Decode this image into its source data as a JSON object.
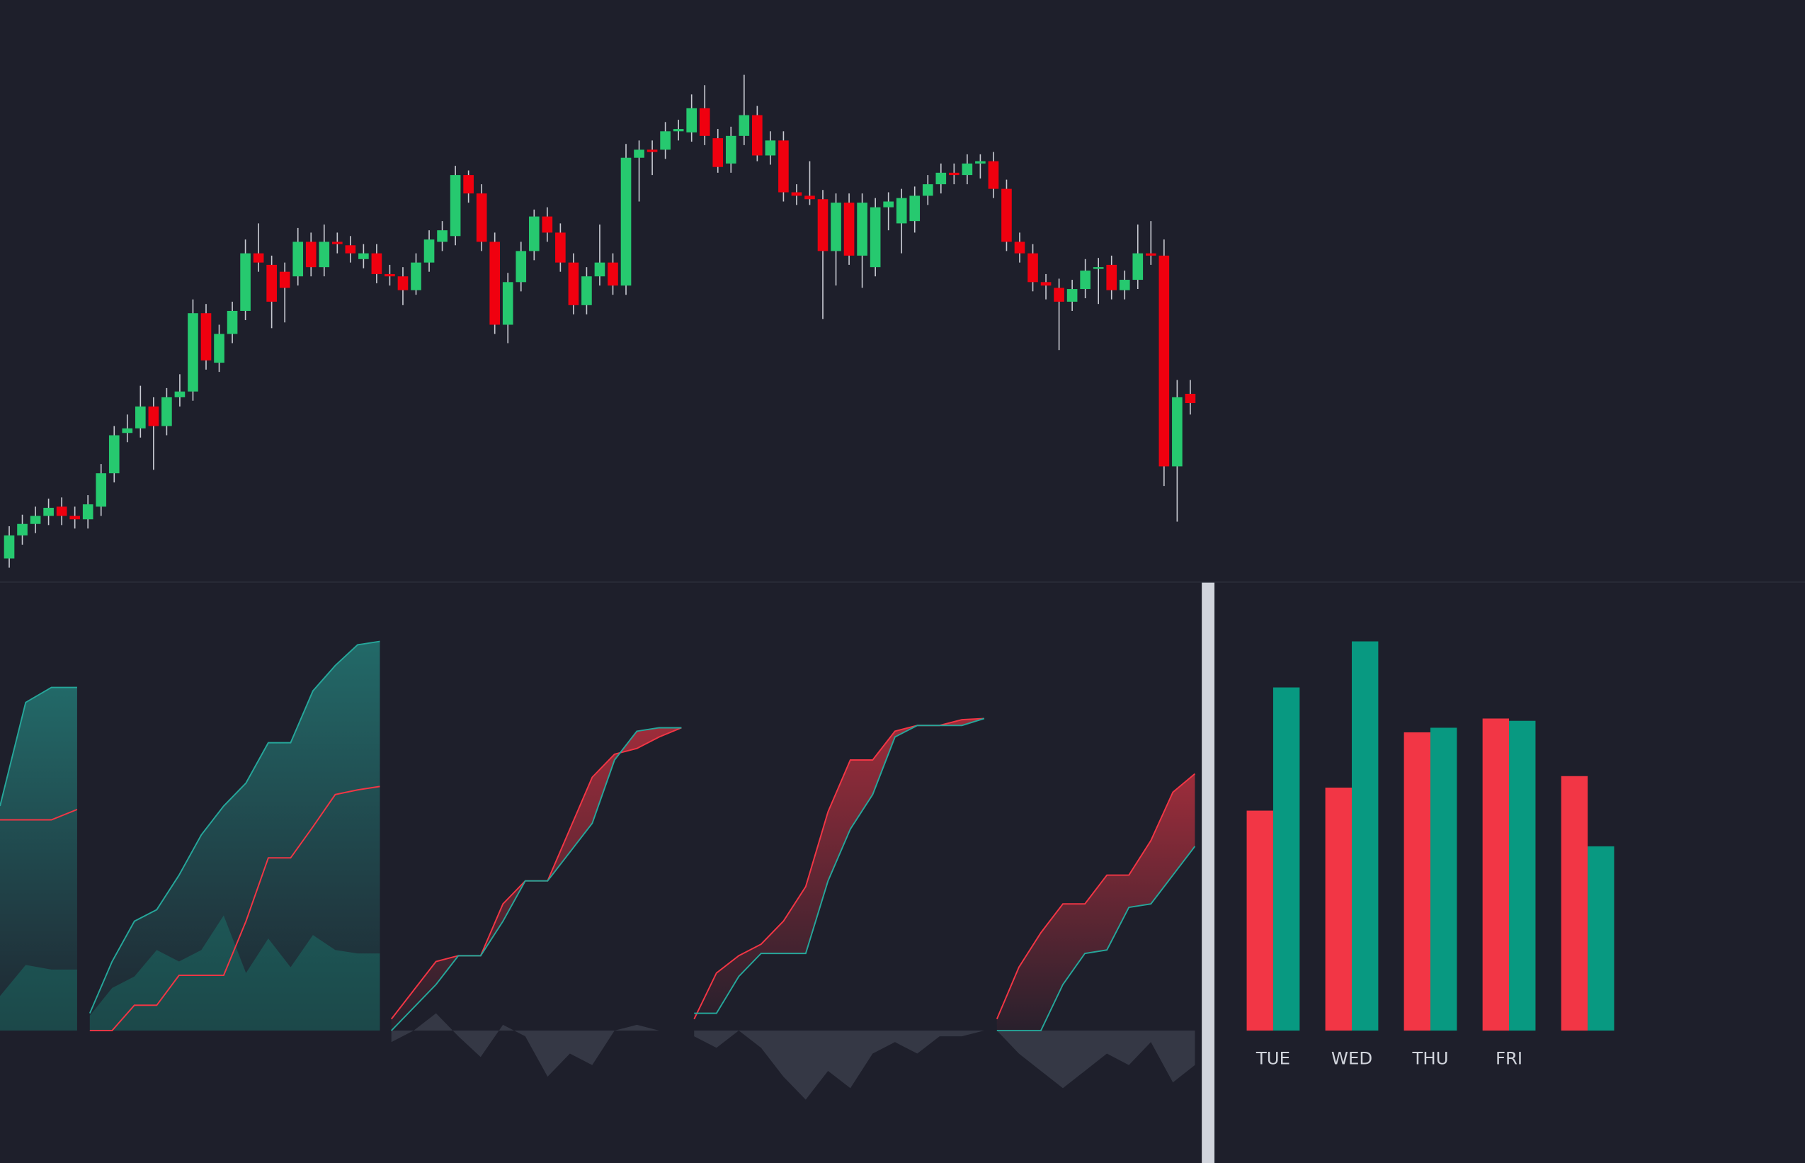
{
  "chart_data": [
    {
      "type": "candlestick",
      "up_color": "#26c96f",
      "down_color": "#f0000f",
      "wick_color": "#c8cad2",
      "ylim": [
        0,
        500
      ],
      "candles": [
        [
          15,
          43,
          7,
          35
        ],
        [
          35,
          53,
          27,
          45
        ],
        [
          45,
          60,
          37,
          52
        ],
        [
          52,
          67,
          44,
          59
        ],
        [
          60,
          68,
          44,
          52
        ],
        [
          52,
          60,
          41,
          49
        ],
        [
          49,
          70,
          41,
          62
        ],
        [
          60,
          97,
          52,
          89
        ],
        [
          89,
          130,
          81,
          122
        ],
        [
          124,
          140,
          116,
          128
        ],
        [
          128,
          165,
          120,
          147
        ],
        [
          147,
          155,
          92,
          130
        ],
        [
          130,
          163,
          122,
          155
        ],
        [
          155,
          175,
          147,
          160
        ],
        [
          160,
          240,
          152,
          228
        ],
        [
          228,
          236,
          179,
          187
        ],
        [
          185,
          218,
          177,
          210
        ],
        [
          210,
          238,
          202,
          230
        ],
        [
          230,
          292,
          222,
          280
        ],
        [
          280,
          306,
          264,
          272
        ],
        [
          270,
          278,
          215,
          238
        ],
        [
          264,
          272,
          220,
          250
        ],
        [
          260,
          302,
          252,
          290
        ],
        [
          290,
          298,
          260,
          268
        ],
        [
          268,
          305,
          260,
          290
        ],
        [
          290,
          298,
          280,
          288
        ],
        [
          287,
          295,
          272,
          280
        ],
        [
          275,
          288,
          267,
          280
        ],
        [
          280,
          288,
          254,
          262
        ],
        [
          262,
          270,
          252,
          260
        ],
        [
          260,
          268,
          235,
          248
        ],
        [
          248,
          280,
          244,
          272
        ],
        [
          272,
          300,
          264,
          292
        ],
        [
          290,
          308,
          282,
          300
        ],
        [
          295,
          356,
          287,
          348
        ],
        [
          348,
          352,
          324,
          332
        ],
        [
          332,
          340,
          282,
          290
        ],
        [
          290,
          298,
          210,
          218
        ],
        [
          218,
          263,
          202,
          255
        ],
        [
          255,
          290,
          247,
          282
        ],
        [
          282,
          318,
          274,
          312
        ],
        [
          312,
          320,
          290,
          298
        ],
        [
          298,
          306,
          264,
          272
        ],
        [
          272,
          280,
          227,
          235
        ],
        [
          235,
          268,
          227,
          260
        ],
        [
          260,
          305,
          252,
          272
        ],
        [
          272,
          280,
          244,
          252
        ],
        [
          252,
          375,
          244,
          363
        ],
        [
          363,
          378,
          325,
          370
        ],
        [
          370,
          378,
          348,
          368
        ],
        [
          370,
          394,
          362,
          386
        ],
        [
          386,
          396,
          378,
          388
        ],
        [
          385,
          418,
          377,
          406
        ],
        [
          406,
          426,
          374,
          382
        ],
        [
          380,
          388,
          350,
          355
        ],
        [
          358,
          390,
          350,
          382
        ],
        [
          382,
          435,
          374,
          400
        ],
        [
          400,
          408,
          360,
          365
        ],
        [
          365,
          386,
          357,
          378
        ],
        [
          378,
          386,
          325,
          333
        ],
        [
          333,
          340,
          322,
          330
        ],
        [
          330,
          360,
          322,
          327
        ],
        [
          327,
          335,
          223,
          282
        ],
        [
          282,
          332,
          252,
          324
        ],
        [
          324,
          332,
          270,
          278
        ],
        [
          278,
          332,
          250,
          324
        ],
        [
          268,
          328,
          260,
          320
        ],
        [
          320,
          333,
          300,
          325
        ],
        [
          306,
          336,
          280,
          328
        ],
        [
          308,
          338,
          298,
          330
        ],
        [
          330,
          348,
          322,
          340
        ],
        [
          340,
          358,
          332,
          350
        ],
        [
          350,
          358,
          340,
          348
        ],
        [
          348,
          366,
          340,
          358
        ],
        [
          358,
          366,
          345,
          360
        ],
        [
          360,
          368,
          328,
          336
        ],
        [
          336,
          344,
          282,
          290
        ],
        [
          290,
          298,
          272,
          280
        ],
        [
          280,
          288,
          247,
          255
        ],
        [
          255,
          262,
          240,
          252
        ],
        [
          250,
          258,
          196,
          238
        ],
        [
          238,
          257,
          230,
          249
        ],
        [
          249,
          275,
          241,
          265
        ],
        [
          268,
          276,
          236,
          268
        ],
        [
          270,
          278,
          240,
          248
        ],
        [
          248,
          265,
          240,
          257
        ],
        [
          257,
          305,
          249,
          280
        ],
        [
          280,
          308,
          270,
          278
        ],
        [
          278,
          292,
          78,
          95
        ],
        [
          95,
          170,
          47,
          155
        ],
        [
          158,
          170,
          140,
          150
        ]
      ]
    },
    {
      "type": "area",
      "ylim": [
        -100,
        350
      ],
      "panels": [
        {
          "fill": "baseline",
          "upper_color": "#26a69a",
          "line_color": "#f23645",
          "base_color": "#1b4a4a",
          "upper": [
            195,
            285,
            298,
            298
          ],
          "line": [
            183,
            183,
            183,
            192
          ],
          "base": [
            30,
            57,
            53,
            53
          ]
        },
        {
          "fill": "baseline",
          "upper_color": "#26a69a",
          "line_color": "#f23645",
          "base_color": "#1b4a4a",
          "upper": [
            15,
            60,
            95,
            105,
            135,
            170,
            195,
            215,
            250,
            250,
            295,
            317,
            335,
            338
          ],
          "line": [
            0,
            0,
            22,
            22,
            48,
            48,
            48,
            95,
            150,
            150,
            177,
            205,
            209,
            212
          ],
          "base": [
            13,
            37,
            47,
            70,
            60,
            70,
            100,
            50,
            80,
            55,
            83,
            70,
            67,
            67
          ]
        },
        {
          "fill": "line",
          "upper_color": "#f23645",
          "line_color": "#26a69a",
          "base_color": "#3a3d4a",
          "upper": [
            10,
            35,
            60,
            65,
            65,
            110,
            130,
            130,
            175,
            220,
            240,
            245,
            255,
            263
          ],
          "line": [
            0,
            20,
            40,
            65,
            65,
            95,
            130,
            130,
            155,
            180,
            235,
            260,
            263,
            263
          ],
          "base": [
            -10,
            0,
            15,
            -5,
            -23,
            5,
            -5,
            -40,
            -20,
            -30,
            0,
            5,
            0,
            0
          ]
        },
        {
          "fill": "line",
          "upper_color": "#f23645",
          "line_color": "#26a69a",
          "base_color": "#3a3d4a",
          "upper": [
            10,
            50,
            65,
            75,
            95,
            125,
            190,
            235,
            235,
            260,
            265,
            265,
            270,
            271
          ],
          "line": [
            15,
            15,
            47,
            67,
            67,
            67,
            130,
            175,
            205,
            255,
            265,
            265,
            265,
            271
          ],
          "base": [
            -5,
            -15,
            0,
            -15,
            -40,
            -60,
            -35,
            -50,
            -20,
            -10,
            -20,
            -5,
            -5,
            0
          ]
        },
        {
          "fill": "line",
          "upper_color": "#f23645",
          "line_color": "#26a69a",
          "base_color": "#3a3d4a",
          "upper": [
            10,
            55,
            85,
            110,
            110,
            135,
            135,
            165,
            207,
            223
          ],
          "line": [
            0,
            0,
            0,
            40,
            67,
            70,
            107,
            110,
            135,
            160
          ],
          "base": [
            0,
            -20,
            -35,
            -50,
            -35,
            -20,
            -30,
            -10,
            -45,
            -30
          ]
        }
      ]
    },
    {
      "type": "bar",
      "ylim": [
        0,
        400
      ],
      "categories": [
        "TUE",
        "WED",
        "THU",
        "FRI",
        null
      ],
      "series": [
        {
          "color": "#f23645",
          "values": [
            191,
            211,
            259,
            271,
            221
          ]
        },
        {
          "color": "#089981",
          "values": [
            298,
            338,
            263,
            269,
            160
          ]
        }
      ]
    }
  ]
}
